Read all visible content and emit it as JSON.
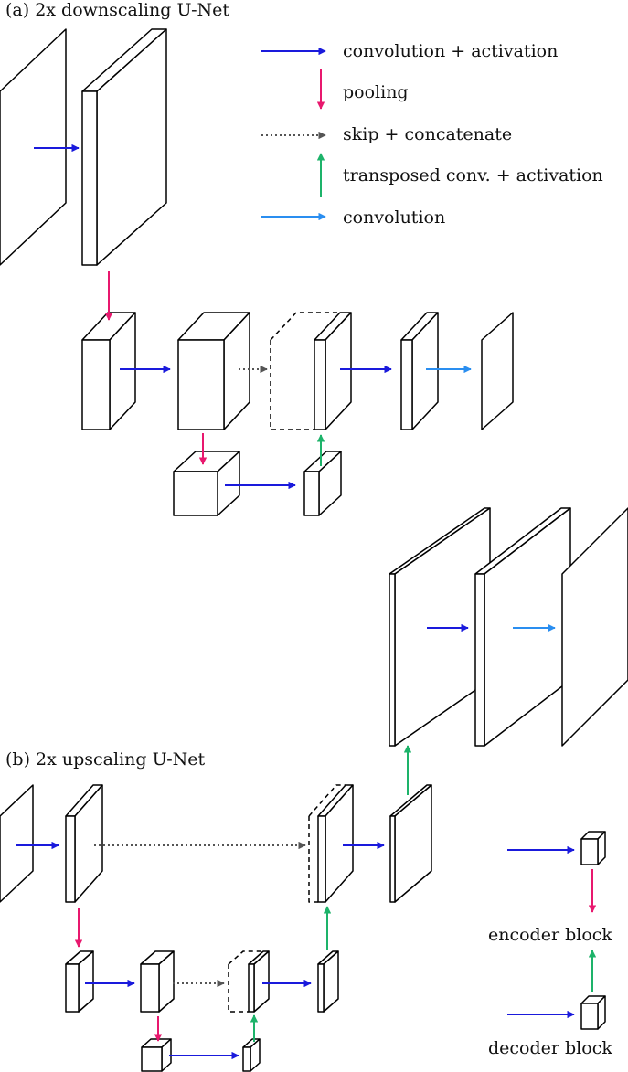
{
  "panels": {
    "a_title": "(a) 2x downscaling U-Net",
    "b_title": "(b) 2x upscaling U-Net"
  },
  "legend": {
    "items": [
      {
        "label": "convolution + activation",
        "icon": "arrow-right",
        "color": "#1a1adc"
      },
      {
        "label": "pooling",
        "icon": "arrow-down",
        "color": "#e8186e"
      },
      {
        "label": "skip + concatenate",
        "icon": "dotted-arrow-right",
        "color": "#555555"
      },
      {
        "label": "transposed conv. + activation",
        "icon": "arrow-up",
        "color": "#1db36a"
      },
      {
        "label": "convolution",
        "icon": "arrow-right",
        "color": "#2a8ef0"
      }
    ]
  },
  "block_legend": {
    "encoder_label": "encoder block",
    "decoder_label": "decoder block"
  },
  "colors": {
    "conv_activation": "#1a1adc",
    "pooling": "#e8186e",
    "skip": "#555555",
    "transposed": "#1db36a",
    "convolution": "#2a8ef0",
    "outline": "#000000"
  }
}
